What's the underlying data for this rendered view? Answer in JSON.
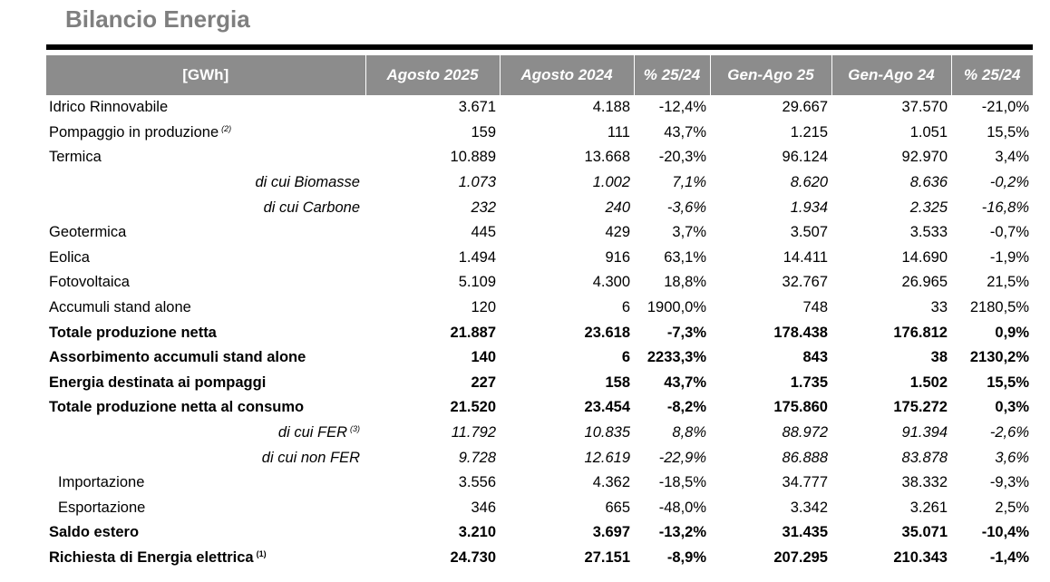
{
  "title": "Bilancio Energia",
  "columns": [
    "[GWh]",
    "Agosto 2025",
    "Agosto 2024",
    "% 25/24",
    "Gen-Ago 25",
    "Gen-Ago 24",
    "% 25/24"
  ],
  "rows": [
    {
      "label": "Idrico Rinnovabile",
      "note": "",
      "style": "",
      "values": [
        "3.671",
        "4.188",
        "-12,4%",
        "29.667",
        "37.570",
        "-21,0%"
      ]
    },
    {
      "label": "Pompaggio in produzione",
      "note": "(2)",
      "style": "",
      "values": [
        "159",
        "111",
        "43,7%",
        "1.215",
        "1.051",
        "15,5%"
      ]
    },
    {
      "label": "Termica",
      "note": "",
      "style": "",
      "values": [
        "10.889",
        "13.668",
        "-20,3%",
        "96.124",
        "92.970",
        "3,4%"
      ]
    },
    {
      "label": "di cui Biomasse",
      "note": "",
      "style": "sub",
      "values": [
        "1.073",
        "1.002",
        "7,1%",
        "8.620",
        "8.636",
        "-0,2%"
      ]
    },
    {
      "label": "di cui Carbone",
      "note": "",
      "style": "sub",
      "values": [
        "232",
        "240",
        "-3,6%",
        "1.934",
        "2.325",
        "-16,8%"
      ]
    },
    {
      "label": "Geotermica",
      "note": "",
      "style": "",
      "values": [
        "445",
        "429",
        "3,7%",
        "3.507",
        "3.533",
        "-0,7%"
      ]
    },
    {
      "label": "Eolica",
      "note": "",
      "style": "",
      "values": [
        "1.494",
        "916",
        "63,1%",
        "14.411",
        "14.690",
        "-1,9%"
      ]
    },
    {
      "label": "Fotovoltaica",
      "note": "",
      "style": "",
      "values": [
        "5.109",
        "4.300",
        "18,8%",
        "32.767",
        "26.965",
        "21,5%"
      ]
    },
    {
      "label": "Accumuli stand alone",
      "note": "",
      "style": "",
      "values": [
        "120",
        "6",
        "1900,0%",
        "748",
        "33",
        "2180,5%"
      ]
    },
    {
      "label": "Totale produzione netta",
      "note": "",
      "style": "bold",
      "values": [
        "21.887",
        "23.618",
        "-7,3%",
        "178.438",
        "176.812",
        "0,9%"
      ]
    },
    {
      "label": "Assorbimento accumuli stand alone",
      "note": "",
      "style": "bold",
      "values": [
        "140",
        "6",
        "2233,3%",
        "843",
        "38",
        "2130,2%"
      ]
    },
    {
      "label": "Energia destinata ai pompaggi",
      "note": "",
      "style": "bold",
      "values": [
        "227",
        "158",
        "43,7%",
        "1.735",
        "1.502",
        "15,5%"
      ]
    },
    {
      "label": "Totale produzione netta al consumo",
      "note": "",
      "style": "bold",
      "values": [
        "21.520",
        "23.454",
        "-8,2%",
        "175.860",
        "175.272",
        "0,3%"
      ]
    },
    {
      "label": "di cui FER",
      "note": "(3)",
      "style": "sub",
      "values": [
        "11.792",
        "10.835",
        "8,8%",
        "88.972",
        "91.394",
        "-2,6%"
      ]
    },
    {
      "label": "di cui non FER",
      "note": "",
      "style": "sub",
      "values": [
        "9.728",
        "12.619",
        "-22,9%",
        "86.888",
        "83.878",
        "3,6%"
      ]
    },
    {
      "label": "Importazione",
      "note": "",
      "style": "indent",
      "values": [
        "3.556",
        "4.362",
        "-18,5%",
        "34.777",
        "38.332",
        "-9,3%"
      ]
    },
    {
      "label": "Esportazione",
      "note": "",
      "style": "indent",
      "values": [
        "346",
        "665",
        "-48,0%",
        "3.342",
        "3.261",
        "2,5%"
      ]
    },
    {
      "label": "Saldo estero",
      "note": "",
      "style": "bold",
      "values": [
        "3.210",
        "3.697",
        "-13,2%",
        "31.435",
        "35.071",
        "-10,4%"
      ]
    },
    {
      "label": "Richiesta di Energia elettrica",
      "note": "(1)",
      "style": "bold",
      "values": [
        "24.730",
        "27.151",
        "-8,9%",
        "207.295",
        "210.343",
        "-1,4%"
      ]
    }
  ]
}
